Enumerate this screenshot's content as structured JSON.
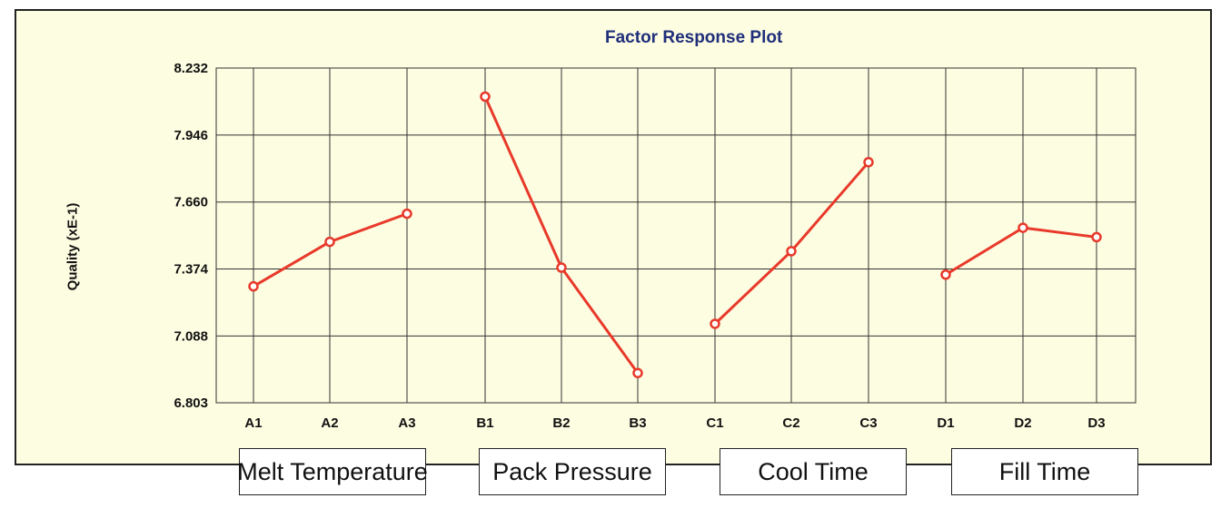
{
  "chart_data": {
    "type": "line",
    "title": "Factor Response Plot",
    "ylabel": "Quality (xE-1)",
    "ylim": [
      6.803,
      8.232
    ],
    "yticks": [
      "8.232",
      "7.946",
      "7.660",
      "7.374",
      "7.088",
      "6.803"
    ],
    "grid": true,
    "colors": {
      "line": "#e8392a",
      "marker_fill": "#ffffff",
      "background": "#fdfde2",
      "title": "#1f2f7a"
    },
    "factors": [
      {
        "label": "Melt Temperature",
        "levels": [
          "A1",
          "A2",
          "A3"
        ],
        "values": [
          7.3,
          7.49,
          7.61
        ]
      },
      {
        "label": "Pack Pressure",
        "levels": [
          "B1",
          "B2",
          "B3"
        ],
        "values": [
          8.11,
          7.38,
          6.93
        ]
      },
      {
        "label": "Cool Time",
        "levels": [
          "C1",
          "C2",
          "C3"
        ],
        "values": [
          7.14,
          7.45,
          7.83
        ]
      },
      {
        "label": "Fill Time",
        "levels": [
          "D1",
          "D2",
          "D3"
        ],
        "values": [
          7.35,
          7.55,
          7.51
        ]
      }
    ]
  }
}
